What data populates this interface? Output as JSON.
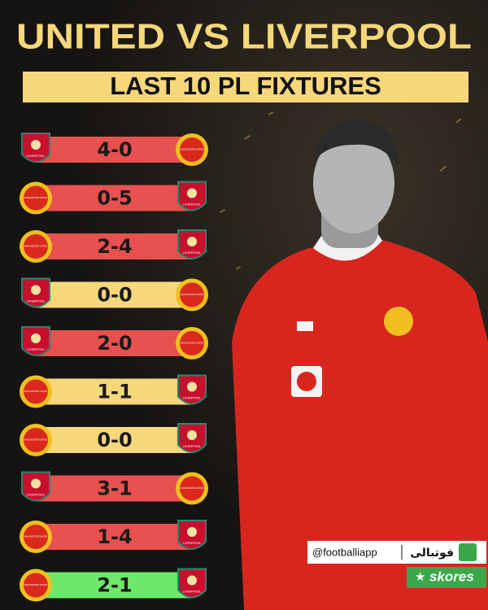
{
  "title": "UNITED VS LIVERPOOL",
  "subtitle": "LAST 10 PL FIXTURES",
  "fixtures": [
    {
      "home": "LIVERPOOL",
      "score": "4-0",
      "away": "MANCHESTER UNITED",
      "color": "#e8514f"
    },
    {
      "home": "MANCHESTER UNITED",
      "score": "0-5",
      "away": "LIVERPOOL",
      "color": "#e8514f"
    },
    {
      "home": "MANCHESTER UNITED",
      "score": "2-4",
      "away": "LIVERPOOL",
      "color": "#e8514f"
    },
    {
      "home": "LIVERPOOL",
      "score": "0-0",
      "away": "MANCHESTER UNITED",
      "color": "#f6d77a"
    },
    {
      "home": "LIVERPOOL",
      "score": "2-0",
      "away": "MANCHESTER UNITED",
      "color": "#e8514f"
    },
    {
      "home": "MANCHESTER UNITED",
      "score": "1-1",
      "away": "LIVERPOOL",
      "color": "#f6d77a"
    },
    {
      "home": "MANCHESTER UNITED",
      "score": "0-0",
      "away": "LIVERPOOL",
      "color": "#f6d77a"
    },
    {
      "home": "LIVERPOOL",
      "score": "3-1",
      "away": "MANCHESTER UNITED",
      "color": "#e8514f"
    },
    {
      "home": "MANCHESTER UNITED",
      "score": "1-4",
      "away": "LIVERPOOL",
      "color": "#e8514f"
    },
    {
      "home": "MANCHESTER UNITED",
      "score": "2-1",
      "away": "LIVERPOOL",
      "color": "#6ee86a"
    }
  ],
  "branding": {
    "handle": "@footballiapp",
    "app_name": "فوتبالی",
    "partner": "skores"
  }
}
